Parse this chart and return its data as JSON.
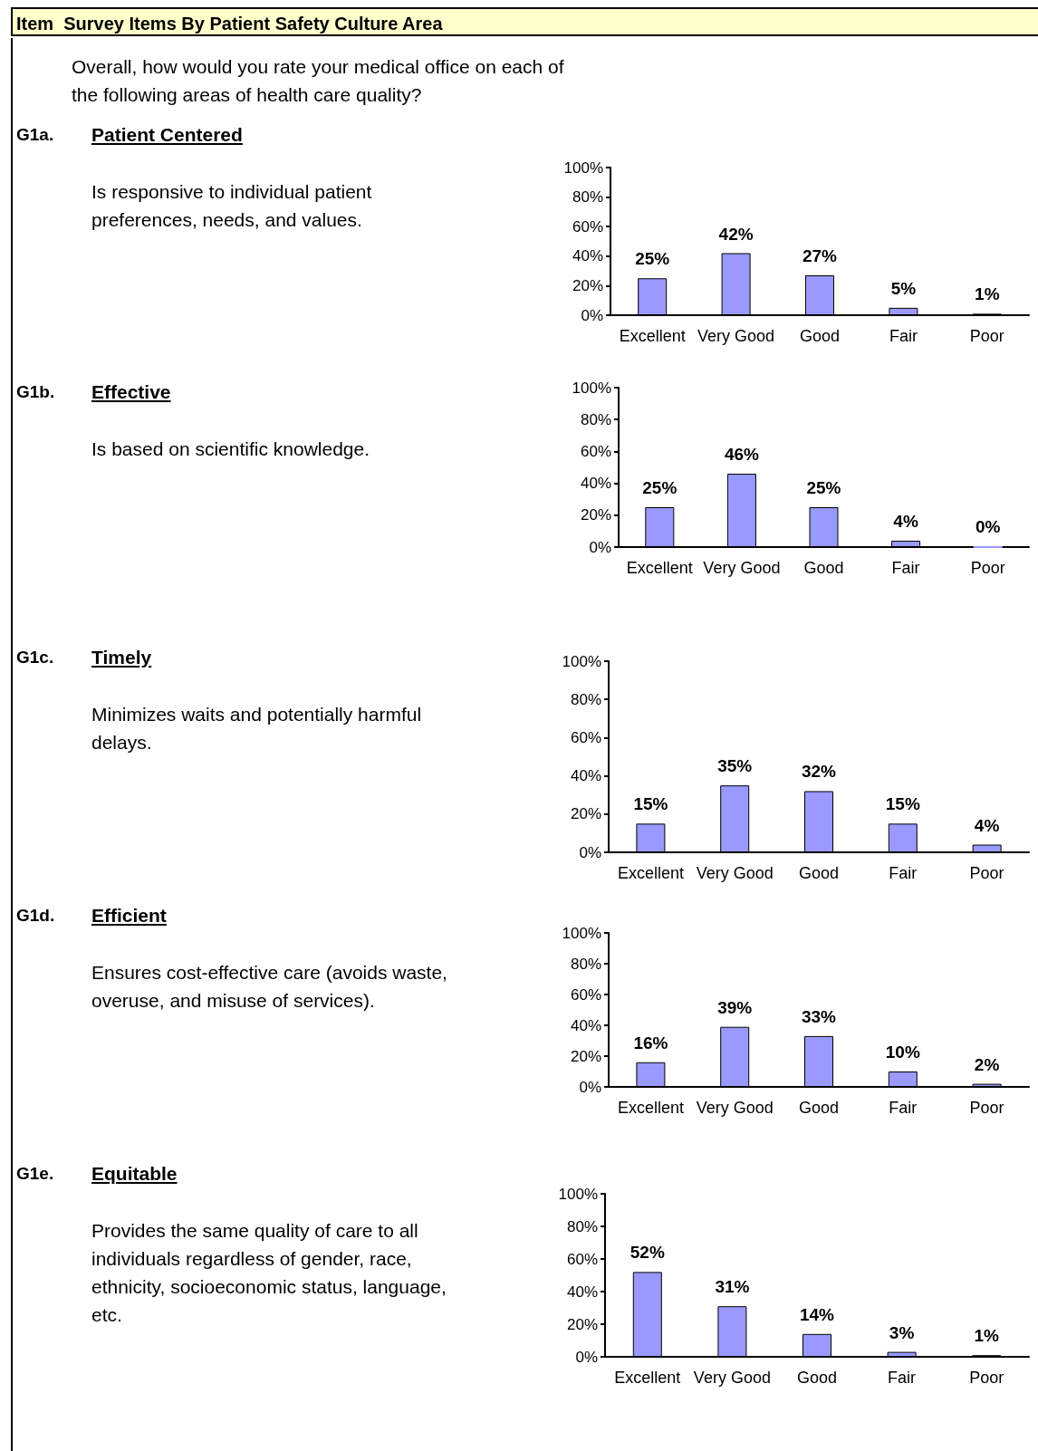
{
  "chart_data": [
    {
      "type": "other",
      "title": "Item  Survey Items By Patient Safety Culture Area",
      "annotations": [
        "Overall, how would you rate your medical office on each of the following areas of health care quality?",
        "G1a.",
        "Patient Centered",
        "Is responsive to individual patient preferences, needs, and values.",
        "G1b.",
        "Effective",
        "Is based on scientific knowledge.",
        "G1c.",
        "Timely",
        "Minimizes waits and potentially harmful delays.",
        "G1d.",
        "Efficient",
        "Ensures cost-effective care (avoids waste, overuse, and misuse of services).",
        "G1e.",
        "Equitable",
        "Provides the same quality of care to all individuals regardless of gender, race, ethnicity, socioeconomic status, language, etc."
      ]
    },
    {
      "type": "bar",
      "categories": [
        "Excellent",
        "Very Good",
        "Good",
        "Fair",
        "Poor"
      ],
      "values": [
        25,
        42,
        27,
        5,
        1
      ],
      "value_labels": [
        "25%",
        "42%",
        "27%",
        "5%",
        "1%"
      ],
      "color": "#9999ff",
      "ylim": [
        0,
        100
      ],
      "yticks": [
        {
          "value": 0,
          "label": "0%"
        },
        {
          "value": 20,
          "label": "20%"
        },
        {
          "value": 40,
          "label": "40%"
        },
        {
          "value": 60,
          "label": "60%"
        },
        {
          "value": 80,
          "label": "80%"
        },
        {
          "value": 100,
          "label": "100%"
        }
      ]
    },
    {
      "type": "bar",
      "categories": [
        "Excellent",
        "Very Good",
        "Good",
        "Fair",
        "Poor"
      ],
      "values": [
        25,
        46,
        25,
        4,
        0
      ],
      "value_labels": [
        "25%",
        "46%",
        "25%",
        "4%",
        "0%"
      ],
      "color": "#9999ff",
      "ylim": [
        0,
        100
      ],
      "yticks": [
        {
          "value": 0,
          "label": "0%"
        },
        {
          "value": 20,
          "label": "20%"
        },
        {
          "value": 40,
          "label": "40%"
        },
        {
          "value": 60,
          "label": "60%"
        },
        {
          "value": 80,
          "label": "80%"
        },
        {
          "value": 100,
          "label": "100%"
        }
      ]
    },
    {
      "type": "bar",
      "categories": [
        "Excellent",
        "Very Good",
        "Good",
        "Fair",
        "Poor"
      ],
      "values": [
        15,
        35,
        32,
        15,
        4
      ],
      "value_labels": [
        "15%",
        "35%",
        "32%",
        "15%",
        "4%"
      ],
      "color": "#9999ff",
      "ylim": [
        0,
        100
      ],
      "yticks": [
        {
          "value": 0,
          "label": "0%"
        },
        {
          "value": 20,
          "label": "20%"
        },
        {
          "value": 40,
          "label": "40%"
        },
        {
          "value": 60,
          "label": "60%"
        },
        {
          "value": 80,
          "label": "80%"
        },
        {
          "value": 100,
          "label": "100%"
        }
      ]
    },
    {
      "type": "bar",
      "categories": [
        "Excellent",
        "Very Good",
        "Good",
        "Fair",
        "Poor"
      ],
      "values": [
        16,
        39,
        33,
        10,
        2
      ],
      "value_labels": [
        "16%",
        "39%",
        "33%",
        "10%",
        "2%"
      ],
      "color": "#9999ff",
      "ylim": [
        0,
        100
      ],
      "yticks": [
        {
          "value": 0,
          "label": "0%"
        },
        {
          "value": 20,
          "label": "20%"
        },
        {
          "value": 40,
          "label": "40%"
        },
        {
          "value": 60,
          "label": "60%"
        },
        {
          "value": 80,
          "label": "80%"
        },
        {
          "value": 100,
          "label": "100%"
        }
      ]
    },
    {
      "type": "bar",
      "categories": [
        "Excellent",
        "Very Good",
        "Good",
        "Fair",
        "Poor"
      ],
      "values": [
        52,
        31,
        14,
        3,
        1
      ],
      "value_labels": [
        "52%",
        "31%",
        "14%",
        "3%",
        "1%"
      ],
      "color": "#9999ff",
      "ylim": [
        0,
        100
      ],
      "yticks": [
        {
          "value": 0,
          "label": "0%"
        },
        {
          "value": 20,
          "label": "20%"
        },
        {
          "value": 40,
          "label": "40%"
        },
        {
          "value": 60,
          "label": "60%"
        },
        {
          "value": 80,
          "label": "80%"
        },
        {
          "value": 100,
          "label": "100%"
        }
      ]
    }
  ]
}
